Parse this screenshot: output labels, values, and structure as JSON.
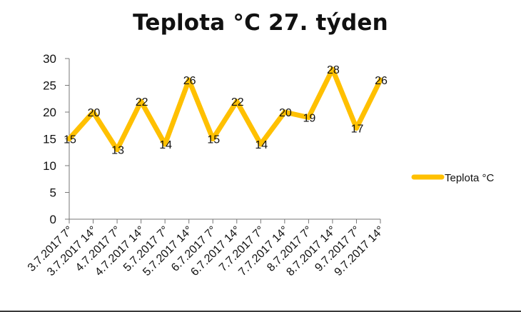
{
  "chart_data": {
    "type": "line",
    "title": "Teplota °C 27. týden",
    "categories": [
      "3.7.2017 7°",
      "3.7.2017 14°",
      "4.7.2017 7°",
      "4.7.2017 14°",
      "5.7.2017 7°",
      "5.7.2017 14°",
      "6.7.2017 7°",
      "6.7.2017 14°",
      "7.7.2017 7°",
      "7.7.2017 14°",
      "8.7.2017 7°",
      "8.7.2017 14°",
      "9.7.2017 7°",
      "9.7.2017 14°"
    ],
    "series": [
      {
        "name": "Teplota °C",
        "values": [
          15,
          20,
          13,
          22,
          14,
          26,
          15,
          22,
          14,
          20,
          19,
          28,
          17,
          26
        ],
        "color": "#ffc000"
      }
    ],
    "ylim": [
      0,
      30
    ],
    "yticks": [
      0,
      5,
      10,
      15,
      20,
      25,
      30
    ],
    "data_labels": true,
    "grid": false,
    "legend_position": "right"
  }
}
